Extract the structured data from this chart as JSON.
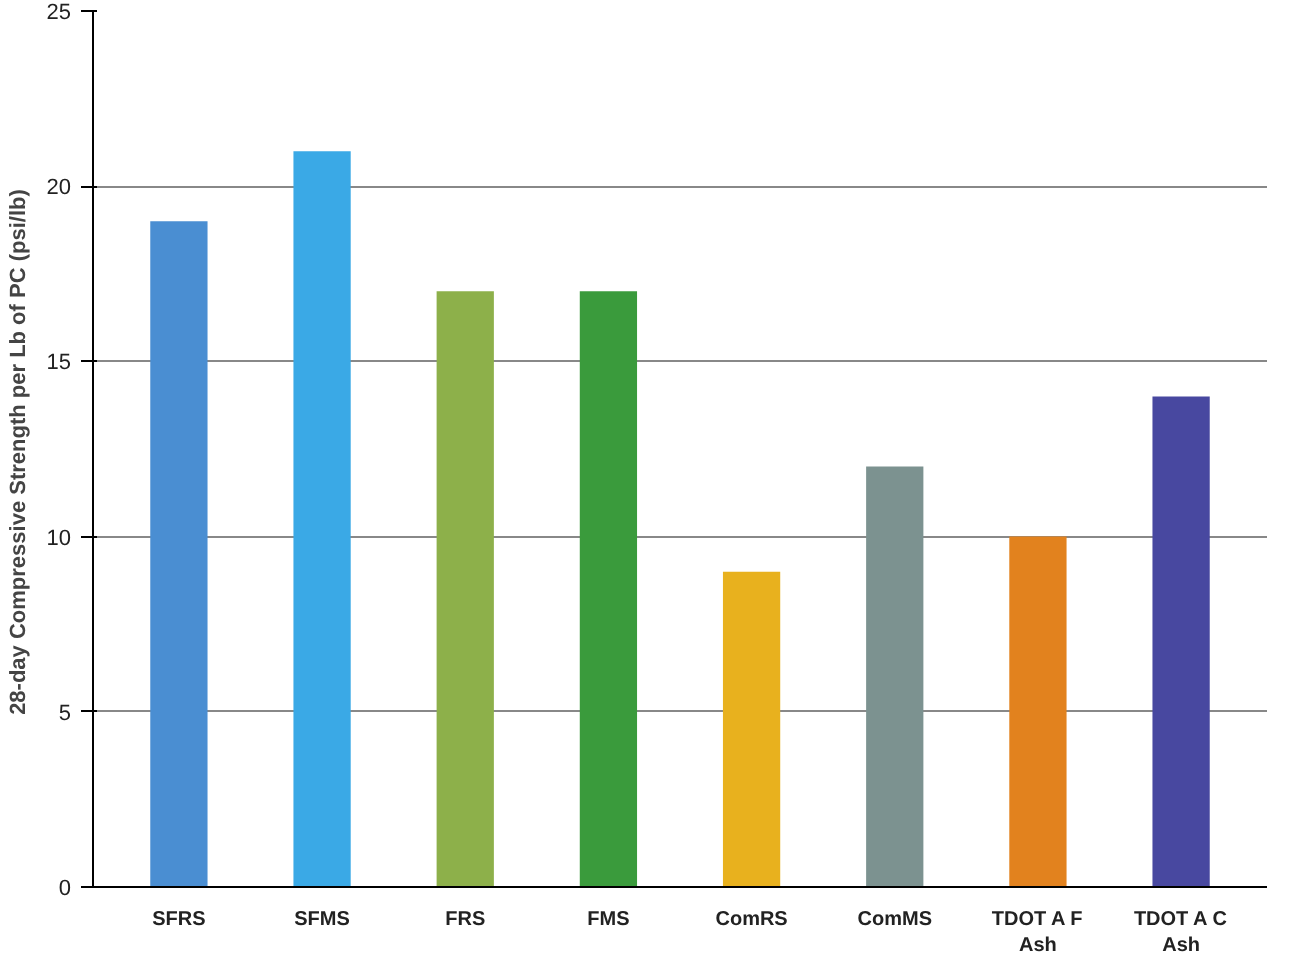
{
  "chart_data": {
    "type": "bar",
    "ylabel": "28-day Compressive Strength per Lb of PC  (psi/lb)",
    "categories": [
      "SFRS",
      "SFMS",
      "FRS",
      "FMS",
      "ComRS",
      "ComMS",
      "TDOT A F\nAsh",
      "TDOT A C\nAsh"
    ],
    "values": [
      19,
      21,
      17,
      17,
      9,
      12,
      10,
      14
    ],
    "colors": [
      "#4a8ed2",
      "#3aa9e6",
      "#8db04a",
      "#3a9b3c",
      "#e8b11e",
      "#7c9290",
      "#e2821e",
      "#4848a0"
    ],
    "ylim": [
      0,
      25
    ],
    "yticks": [
      0,
      5,
      10,
      15,
      20,
      25
    ],
    "grid": "y"
  }
}
